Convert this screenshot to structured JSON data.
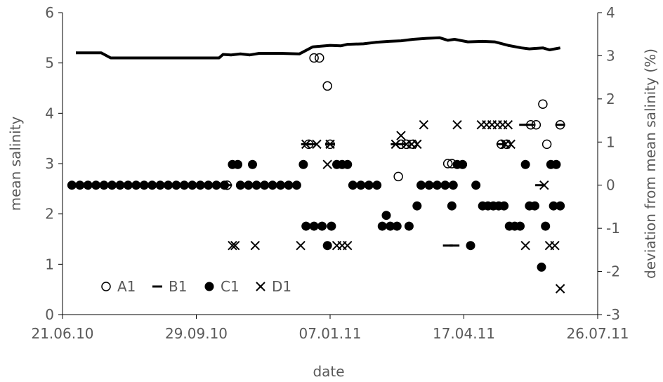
{
  "chart_data": {
    "type": "scatter",
    "xlabel": "date",
    "ylabel_left": "mean salinity",
    "ylabel_right": "deviation from mean salinity (%)",
    "x_ticks": [
      "21.06.10",
      "29.09.10",
      "07.01.11",
      "17.04.11",
      "26.07.11"
    ],
    "x_range": [
      "2010-06-21",
      "2011-07-26"
    ],
    "ylim_left": [
      0,
      6
    ],
    "y_ticks_left": [
      "0",
      "1",
      "2",
      "3",
      "4",
      "5",
      "6"
    ],
    "ylim_right": [
      -3,
      4
    ],
    "y_ticks_right": [
      "-3",
      "-2",
      "-1",
      "0",
      "1",
      "2",
      "3",
      "4"
    ],
    "grid": false,
    "legend_position": "bottom-left",
    "series": [
      {
        "name": "mean salinity",
        "type": "line",
        "axis": "left",
        "color": "#000000",
        "points": [
          [
            "2010-07-01",
            5.2
          ],
          [
            "2010-07-20",
            5.2
          ],
          [
            "2010-07-27",
            5.1
          ],
          [
            "2010-08-15",
            5.1
          ],
          [
            "2010-09-01",
            5.1
          ],
          [
            "2010-09-20",
            5.1
          ],
          [
            "2010-10-10",
            5.1
          ],
          [
            "2010-10-16",
            5.1
          ],
          [
            "2010-10-19",
            5.17
          ],
          [
            "2010-10-25",
            5.16
          ],
          [
            "2010-11-01",
            5.18
          ],
          [
            "2010-11-08",
            5.16
          ],
          [
            "2010-11-15",
            5.19
          ],
          [
            "2010-12-01",
            5.19
          ],
          [
            "2010-12-15",
            5.18
          ],
          [
            "2010-12-20",
            5.25
          ],
          [
            "2010-12-25",
            5.32
          ],
          [
            "2011-01-07",
            5.35
          ],
          [
            "2011-01-15",
            5.34
          ],
          [
            "2011-01-20",
            5.37
          ],
          [
            "2011-02-01",
            5.38
          ],
          [
            "2011-02-10",
            5.41
          ],
          [
            "2011-02-20",
            5.43
          ],
          [
            "2011-03-01",
            5.44
          ],
          [
            "2011-03-10",
            5.47
          ],
          [
            "2011-03-20",
            5.49
          ],
          [
            "2011-03-30",
            5.5
          ],
          [
            "2011-04-05",
            5.45
          ],
          [
            "2011-04-10",
            5.47
          ],
          [
            "2011-04-20",
            5.42
          ],
          [
            "2011-05-01",
            5.43
          ],
          [
            "2011-05-10",
            5.42
          ],
          [
            "2011-05-20",
            5.35
          ],
          [
            "2011-05-30",
            5.3
          ],
          [
            "2011-06-05",
            5.28
          ],
          [
            "2011-06-15",
            5.3
          ],
          [
            "2011-06-20",
            5.26
          ],
          [
            "2011-06-28",
            5.3
          ]
        ]
      },
      {
        "name": "A1",
        "marker": "open-circle",
        "axis": "right",
        "points": [
          [
            "2010-10-22",
            0.0
          ],
          [
            "2010-12-22",
            0.95
          ],
          [
            "2010-12-26",
            2.95
          ],
          [
            "2010-12-30",
            2.95
          ],
          [
            "2011-01-05",
            2.3
          ],
          [
            "2011-01-07",
            0.95
          ],
          [
            "2011-02-27",
            0.2
          ],
          [
            "2011-03-01",
            0.95
          ],
          [
            "2011-03-05",
            0.95
          ],
          [
            "2011-03-10",
            0.95
          ],
          [
            "2011-04-05",
            0.5
          ],
          [
            "2011-04-08",
            0.5
          ],
          [
            "2011-05-15",
            0.95
          ],
          [
            "2011-05-19",
            0.95
          ],
          [
            "2011-06-06",
            1.4
          ],
          [
            "2011-06-10",
            1.4
          ],
          [
            "2011-06-15",
            1.88
          ],
          [
            "2011-06-18",
            0.95
          ],
          [
            "2011-06-28",
            1.4
          ]
        ]
      },
      {
        "name": "B1",
        "marker": "dash",
        "axis": "right",
        "points": [
          [
            "2010-10-22",
            0.0
          ],
          [
            "2010-12-20",
            0.95
          ],
          [
            "2010-12-24",
            0.95
          ],
          [
            "2011-01-07",
            0.95
          ],
          [
            "2011-02-25",
            0.95
          ],
          [
            "2011-03-01",
            0.95
          ],
          [
            "2011-04-05",
            -1.4
          ],
          [
            "2011-04-10",
            -1.4
          ],
          [
            "2011-05-15",
            0.95
          ],
          [
            "2011-06-01",
            1.4
          ],
          [
            "2011-06-05",
            1.4
          ],
          [
            "2011-06-13",
            0.0
          ],
          [
            "2011-06-28",
            1.4
          ]
        ]
      },
      {
        "name": "C1",
        "marker": "filled-circle",
        "axis": "right",
        "points": [
          [
            "2010-06-28",
            0.0
          ],
          [
            "2010-07-04",
            0.0
          ],
          [
            "2010-07-10",
            0.0
          ],
          [
            "2010-07-16",
            0.0
          ],
          [
            "2010-07-22",
            0.0
          ],
          [
            "2010-07-28",
            0.0
          ],
          [
            "2010-08-03",
            0.0
          ],
          [
            "2010-08-09",
            0.0
          ],
          [
            "2010-08-15",
            0.0
          ],
          [
            "2010-08-21",
            0.0
          ],
          [
            "2010-08-27",
            0.0
          ],
          [
            "2010-09-02",
            0.0
          ],
          [
            "2010-09-08",
            0.0
          ],
          [
            "2010-09-14",
            0.0
          ],
          [
            "2010-09-20",
            0.0
          ],
          [
            "2010-09-26",
            0.0
          ],
          [
            "2010-10-02",
            0.0
          ],
          [
            "2010-10-08",
            0.0
          ],
          [
            "2010-10-14",
            0.0
          ],
          [
            "2010-10-20",
            0.0
          ],
          [
            "2010-10-26",
            0.48
          ],
          [
            "2010-10-30",
            0.48
          ],
          [
            "2010-11-01",
            0.0
          ],
          [
            "2010-11-07",
            0.0
          ],
          [
            "2010-11-13",
            0.0
          ],
          [
            "2010-11-10",
            0.48
          ],
          [
            "2010-11-19",
            0.0
          ],
          [
            "2010-11-25",
            0.0
          ],
          [
            "2010-12-01",
            0.0
          ],
          [
            "2010-12-07",
            0.0
          ],
          [
            "2010-12-13",
            0.0
          ],
          [
            "2010-12-18",
            0.48
          ],
          [
            "2010-12-20",
            -0.95
          ],
          [
            "2010-12-26",
            -0.95
          ],
          [
            "2011-01-01",
            -0.95
          ],
          [
            "2011-01-05",
            -1.4
          ],
          [
            "2011-01-08",
            -0.95
          ],
          [
            "2011-01-12",
            0.48
          ],
          [
            "2011-01-16",
            0.48
          ],
          [
            "2011-01-20",
            0.48
          ],
          [
            "2011-01-24",
            0.0
          ],
          [
            "2011-01-30",
            0.0
          ],
          [
            "2011-02-05",
            0.0
          ],
          [
            "2011-02-11",
            0.0
          ],
          [
            "2011-02-15",
            -0.95
          ],
          [
            "2011-02-18",
            -0.7
          ],
          [
            "2011-02-21",
            -0.95
          ],
          [
            "2011-02-26",
            -0.95
          ],
          [
            "2011-03-07",
            -0.95
          ],
          [
            "2011-03-13",
            -0.48
          ],
          [
            "2011-03-16",
            0.0
          ],
          [
            "2011-03-22",
            0.0
          ],
          [
            "2011-03-28",
            0.0
          ],
          [
            "2011-04-03",
            0.0
          ],
          [
            "2011-04-09",
            0.0
          ],
          [
            "2011-04-08",
            -0.48
          ],
          [
            "2011-04-12",
            0.48
          ],
          [
            "2011-04-16",
            0.48
          ],
          [
            "2011-04-22",
            -1.4
          ],
          [
            "2011-04-26",
            0.0
          ],
          [
            "2011-05-01",
            -0.48
          ],
          [
            "2011-05-05",
            -0.48
          ],
          [
            "2011-05-09",
            -0.48
          ],
          [
            "2011-05-13",
            -0.48
          ],
          [
            "2011-05-17",
            -0.48
          ],
          [
            "2011-05-21",
            -0.95
          ],
          [
            "2011-05-25",
            -0.95
          ],
          [
            "2011-05-29",
            -0.95
          ],
          [
            "2011-06-02",
            0.48
          ],
          [
            "2011-06-05",
            -0.48
          ],
          [
            "2011-06-09",
            -0.48
          ],
          [
            "2011-06-14",
            -1.9
          ],
          [
            "2011-06-17",
            -0.95
          ],
          [
            "2011-06-21",
            0.48
          ],
          [
            "2011-06-23",
            -0.48
          ],
          [
            "2011-06-25",
            0.48
          ],
          [
            "2011-06-28",
            -0.48
          ]
        ]
      },
      {
        "name": "D1",
        "marker": "x",
        "axis": "right",
        "points": [
          [
            "2010-10-26",
            -1.4
          ],
          [
            "2010-10-28",
            -1.4
          ],
          [
            "2010-11-12",
            -1.4
          ],
          [
            "2010-12-16",
            -1.4
          ],
          [
            "2010-12-20",
            0.95
          ],
          [
            "2010-12-28",
            0.95
          ],
          [
            "2011-01-05",
            0.48
          ],
          [
            "2011-01-07",
            0.95
          ],
          [
            "2011-01-12",
            -1.4
          ],
          [
            "2011-01-16",
            -1.4
          ],
          [
            "2011-01-20",
            -1.4
          ],
          [
            "2011-02-25",
            0.95
          ],
          [
            "2011-03-01",
            1.15
          ],
          [
            "2011-03-05",
            0.95
          ],
          [
            "2011-03-09",
            0.95
          ],
          [
            "2011-03-13",
            0.95
          ],
          [
            "2011-03-18",
            1.4
          ],
          [
            "2011-04-12",
            1.4
          ],
          [
            "2011-04-30",
            1.4
          ],
          [
            "2011-05-04",
            1.4
          ],
          [
            "2011-05-08",
            1.4
          ],
          [
            "2011-05-12",
            1.4
          ],
          [
            "2011-05-16",
            1.4
          ],
          [
            "2011-05-20",
            1.4
          ],
          [
            "2011-05-18",
            0.95
          ],
          [
            "2011-05-22",
            0.95
          ],
          [
            "2011-06-02",
            -1.4
          ],
          [
            "2011-06-16",
            0.0
          ],
          [
            "2011-06-20",
            -1.4
          ],
          [
            "2011-06-24",
            -1.4
          ],
          [
            "2011-06-28",
            -2.4
          ]
        ]
      }
    ],
    "legend": [
      "A1",
      "B1",
      "C1",
      "D1"
    ]
  }
}
